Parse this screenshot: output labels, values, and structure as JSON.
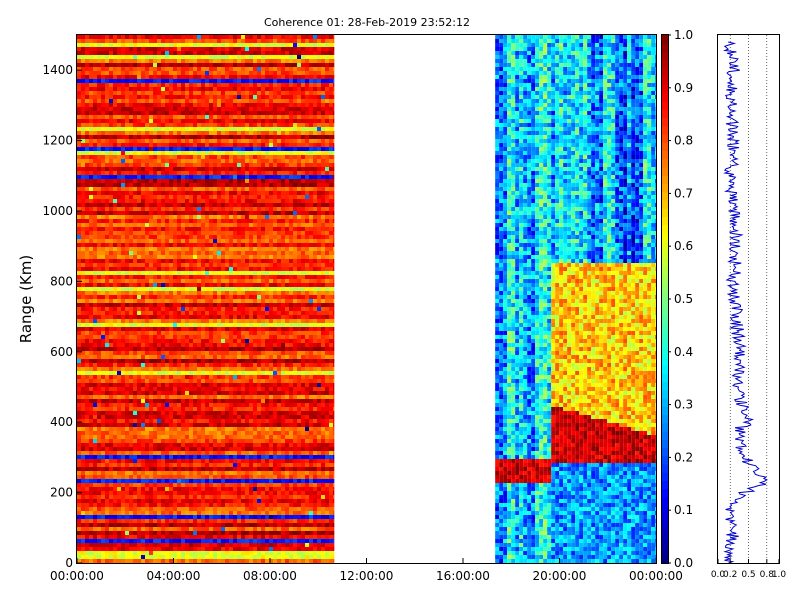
{
  "chart_data": [
    {
      "type": "heatmap",
      "title": "Coherence 01: 28-Feb-2019 23:52:12",
      "ylabel": "Range (Km)",
      "xlabel": "",
      "x_range": [
        "00:00:00",
        "24:00:00"
      ],
      "ylim": [
        0,
        1500
      ],
      "x_tick_labels": [
        "00:00:00",
        "04:00:00",
        "08:00:00",
        "12:00:00",
        "16:00:00",
        "20:00:00",
        "00:00:00"
      ],
      "y_tick_labels": [
        "0",
        "200",
        "400",
        "600",
        "800",
        "1000",
        "1200",
        "1400"
      ],
      "colorbar": {
        "range": [
          0,
          1
        ],
        "colormap": "jet",
        "tick_labels": [
          "0.0",
          "0.1",
          "0.2",
          "0.3",
          "0.4",
          "0.5",
          "0.6",
          "0.7",
          "0.8",
          "0.9",
          "1.0"
        ]
      },
      "data_segments": [
        {
          "start": "00:00:00",
          "end": "10:40:00",
          "typical_value": 0.85,
          "pattern": "high coherence horizontal banding across all ranges"
        },
        {
          "start": "10:40:00",
          "end": "17:20:00",
          "typical_value": null,
          "pattern": "no data"
        },
        {
          "start": "17:20:00",
          "end": "24:00:00",
          "typical_value": 0.3,
          "pattern": "low coherence with high-coherence layer near 250-450 km after 20:00"
        }
      ],
      "grid": false,
      "legend": "none"
    },
    {
      "type": "line",
      "title": "",
      "xlabel": "",
      "ylabel": "",
      "xlim": [
        0,
        1
      ],
      "ylim": [
        0,
        1500
      ],
      "x_tick_labels": [
        "0.0",
        "0.2",
        "0.5",
        "0.8",
        "1.0"
      ],
      "x_tick_values": [
        0.0,
        0.2,
        0.5,
        0.8,
        1.0
      ],
      "x_grid": true,
      "series": [
        {
          "color": "#0000cc",
          "profile": [
            [
              0,
              0.2
            ],
            [
              100,
              0.25
            ],
            [
              150,
              0.2
            ],
            [
              200,
              0.45
            ],
            [
              230,
              0.75
            ],
            [
              270,
              0.55
            ],
            [
              320,
              0.4
            ],
            [
              380,
              0.35
            ],
            [
              400,
              0.5
            ],
            [
              430,
              0.45
            ],
            [
              500,
              0.3
            ],
            [
              600,
              0.35
            ],
            [
              700,
              0.3
            ],
            [
              800,
              0.25
            ],
            [
              900,
              0.3
            ],
            [
              1000,
              0.25
            ],
            [
              1100,
              0.2
            ],
            [
              1200,
              0.25
            ],
            [
              1300,
              0.2
            ],
            [
              1400,
              0.25
            ],
            [
              1480,
              0.2
            ]
          ]
        }
      ]
    }
  ]
}
